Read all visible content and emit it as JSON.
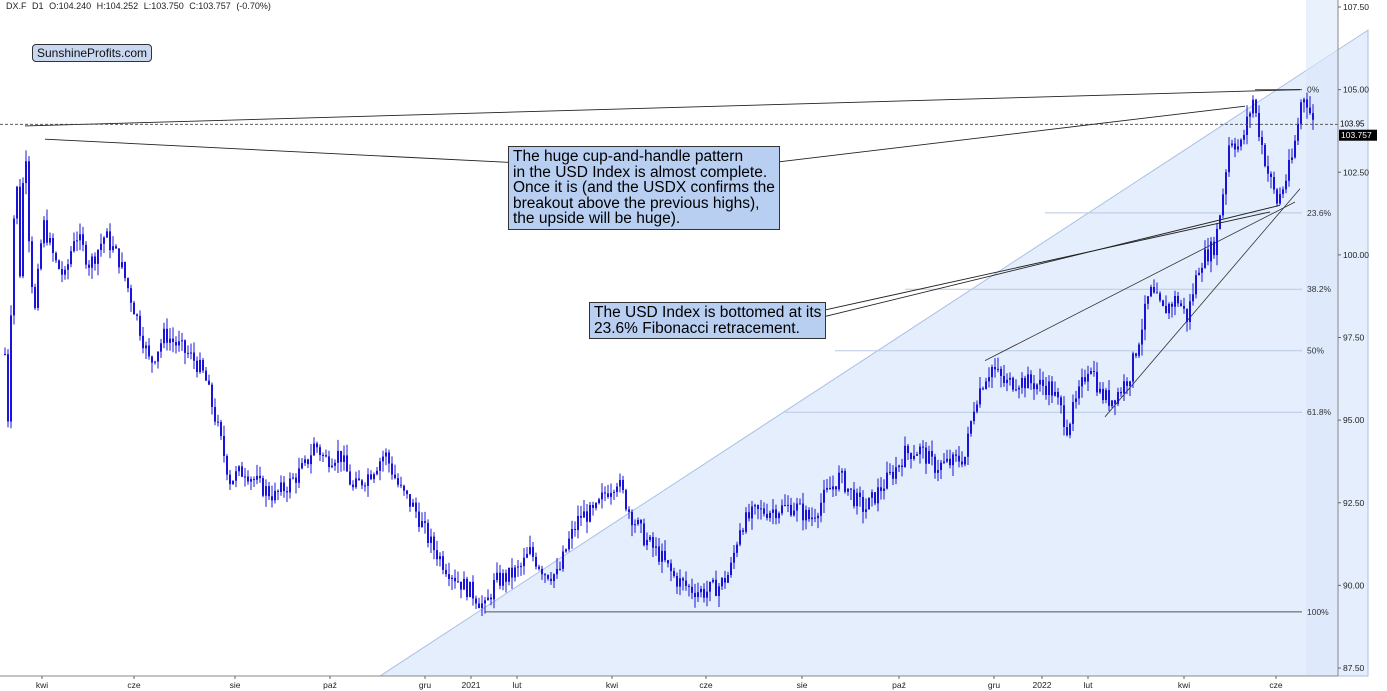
{
  "header": {
    "symbol": "DX.F",
    "interval": "D1",
    "open": "O:104.240",
    "high": "H:104.252",
    "low": "L:103.750",
    "close": "C:103.757",
    "change": "(-0.70%)"
  },
  "logo": "SunshineProfits.com",
  "annotations": {
    "cup_handle": "The huge cup-and-handle pattern\nin the USD Index is almost complete.\nOnce it is (and the USDX confirms the\nbreakout above the previous highs),\nthe upside will be huge).",
    "fib_bottom": "The USD Index is bottomed at its\n23.6% Fibonacci retracement."
  },
  "colors": {
    "candles": "#1a14d8",
    "fib_fill": "#dbe8fb",
    "callout_fill": "#b8cff1",
    "price_label": "#000000"
  },
  "chart_data": {
    "type": "candlestick",
    "symbol": "DX.F",
    "timeframe": "D1",
    "ylim": [
      87.5,
      107.5
    ],
    "y_ticks": [
      87.5,
      90.0,
      92.5,
      95.0,
      97.5,
      100.0,
      102.5,
      105.0,
      107.5
    ],
    "y_tick_labels": [
      "87.50",
      "90.00",
      "92.50",
      "95.00",
      "97.50",
      "100.00",
      "102.50",
      "105.00",
      "107.50"
    ],
    "x_ticks": [
      "kwi",
      "cze",
      "sie",
      "paź",
      "gru",
      "2021",
      "lut",
      "kwi",
      "cze",
      "sie",
      "paź",
      "gru",
      "2022",
      "lut",
      "kwi",
      "cze"
    ],
    "last_price": "103.757",
    "last_price_partial": "103.95",
    "fibonacci": {
      "low": 89.2,
      "high": 105.0,
      "levels": [
        {
          "label": "0%",
          "value": 105.0
        },
        {
          "label": "23.6%",
          "value": 101.27
        },
        {
          "label": "38.2%",
          "value": 98.96
        },
        {
          "label": "50%",
          "value": 97.1
        },
        {
          "label": "61.8%",
          "value": 95.24
        },
        {
          "label": "100%",
          "value": 89.2
        }
      ]
    },
    "anchors": [
      {
        "t": 0,
        "v": 97.0
      },
      {
        "t": 3,
        "v": 95.1
      },
      {
        "t": 7,
        "v": 99.5
      },
      {
        "t": 11,
        "v": 102.8
      },
      {
        "t": 15,
        "v": 99.5
      },
      {
        "t": 20,
        "v": 103.9
      },
      {
        "t": 25,
        "v": 99.8
      },
      {
        "t": 30,
        "v": 98.3
      },
      {
        "t": 38,
        "v": 101.0
      },
      {
        "t": 50,
        "v": 99.8
      },
      {
        "t": 60,
        "v": 99.3
      },
      {
        "t": 70,
        "v": 100.7
      },
      {
        "t": 85,
        "v": 99.7
      },
      {
        "t": 100,
        "v": 100.6
      },
      {
        "t": 115,
        "v": 99.8
      },
      {
        "t": 130,
        "v": 98.3
      },
      {
        "t": 145,
        "v": 96.7
      },
      {
        "t": 160,
        "v": 97.6
      },
      {
        "t": 175,
        "v": 97.2
      },
      {
        "t": 190,
        "v": 96.8
      },
      {
        "t": 200,
        "v": 96.3
      },
      {
        "t": 210,
        "v": 95.1
      },
      {
        "t": 225,
        "v": 93.2
      },
      {
        "t": 240,
        "v": 93.5
      },
      {
        "t": 255,
        "v": 93.0
      },
      {
        "t": 270,
        "v": 92.7
      },
      {
        "t": 285,
        "v": 93.1
      },
      {
        "t": 300,
        "v": 93.6
      },
      {
        "t": 310,
        "v": 94.3
      },
      {
        "t": 320,
        "v": 93.8
      },
      {
        "t": 335,
        "v": 94.0
      },
      {
        "t": 348,
        "v": 92.9
      },
      {
        "t": 365,
        "v": 93.4
      },
      {
        "t": 380,
        "v": 94.0
      },
      {
        "t": 395,
        "v": 92.9
      },
      {
        "t": 410,
        "v": 92.3
      },
      {
        "t": 425,
        "v": 91.3
      },
      {
        "t": 440,
        "v": 90.6
      },
      {
        "t": 455,
        "v": 90.1
      },
      {
        "t": 470,
        "v": 89.7
      },
      {
        "t": 480,
        "v": 89.3
      },
      {
        "t": 490,
        "v": 90.1
      },
      {
        "t": 505,
        "v": 90.3
      },
      {
        "t": 515,
        "v": 90.5
      },
      {
        "t": 525,
        "v": 91.0
      },
      {
        "t": 540,
        "v": 90.4
      },
      {
        "t": 553,
        "v": 90.3
      },
      {
        "t": 562,
        "v": 91.2
      },
      {
        "t": 575,
        "v": 92.1
      },
      {
        "t": 590,
        "v": 92.2
      },
      {
        "t": 600,
        "v": 92.8
      },
      {
        "t": 612,
        "v": 93.2
      },
      {
        "t": 625,
        "v": 92.2
      },
      {
        "t": 640,
        "v": 91.4
      },
      {
        "t": 655,
        "v": 90.9
      },
      {
        "t": 670,
        "v": 90.2
      },
      {
        "t": 685,
        "v": 89.9
      },
      {
        "t": 700,
        "v": 89.8
      },
      {
        "t": 715,
        "v": 90.0
      },
      {
        "t": 725,
        "v": 90.4
      },
      {
        "t": 735,
        "v": 91.8
      },
      {
        "t": 750,
        "v": 92.2
      },
      {
        "t": 770,
        "v": 92.3
      },
      {
        "t": 790,
        "v": 92.4
      },
      {
        "t": 805,
        "v": 92.0
      },
      {
        "t": 820,
        "v": 92.7
      },
      {
        "t": 835,
        "v": 93.3
      },
      {
        "t": 850,
        "v": 92.6
      },
      {
        "t": 860,
        "v": 92.3
      },
      {
        "t": 875,
        "v": 92.9
      },
      {
        "t": 890,
        "v": 93.5
      },
      {
        "t": 900,
        "v": 94.0
      },
      {
        "t": 915,
        "v": 94.1
      },
      {
        "t": 930,
        "v": 93.6
      },
      {
        "t": 945,
        "v": 93.7
      },
      {
        "t": 960,
        "v": 93.9
      },
      {
        "t": 970,
        "v": 95.6
      },
      {
        "t": 980,
        "v": 96.3
      },
      {
        "t": 987,
        "v": 96.6
      },
      {
        "t": 1000,
        "v": 96.1
      },
      {
        "t": 1015,
        "v": 96.2
      },
      {
        "t": 1030,
        "v": 96.1
      },
      {
        "t": 1045,
        "v": 96.0
      },
      {
        "t": 1055,
        "v": 95.4
      },
      {
        "t": 1062,
        "v": 94.8
      },
      {
        "t": 1072,
        "v": 95.6
      },
      {
        "t": 1085,
        "v": 96.8
      },
      {
        "t": 1095,
        "v": 95.8
      },
      {
        "t": 1105,
        "v": 95.6
      },
      {
        "t": 1115,
        "v": 95.9
      },
      {
        "t": 1125,
        "v": 96.4
      },
      {
        "t": 1135,
        "v": 97.6
      },
      {
        "t": 1145,
        "v": 98.9
      },
      {
        "t": 1158,
        "v": 98.3
      },
      {
        "t": 1172,
        "v": 98.7
      },
      {
        "t": 1182,
        "v": 98.1
      },
      {
        "t": 1195,
        "v": 99.8
      },
      {
        "t": 1210,
        "v": 100.3
      },
      {
        "t": 1218,
        "v": 101.9
      },
      {
        "t": 1225,
        "v": 103.6
      },
      {
        "t": 1235,
        "v": 103.2
      },
      {
        "t": 1248,
        "v": 104.7
      },
      {
        "t": 1255,
        "v": 103.6
      },
      {
        "t": 1262,
        "v": 102.6
      },
      {
        "t": 1272,
        "v": 101.6
      },
      {
        "t": 1280,
        "v": 102.2
      },
      {
        "t": 1288,
        "v": 103.0
      },
      {
        "t": 1296,
        "v": 104.6
      },
      {
        "t": 1300,
        "v": 104.9
      },
      {
        "t": 1306,
        "v": 104.2
      },
      {
        "t": 1310,
        "v": 103.76
      }
    ]
  }
}
